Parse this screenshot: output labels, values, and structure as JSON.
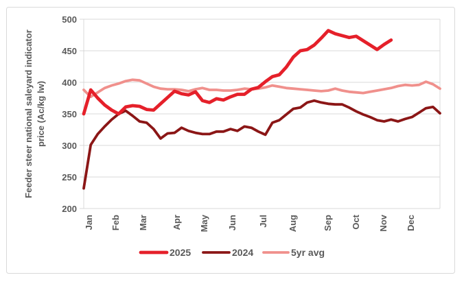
{
  "chart_data": {
    "type": "line",
    "title": "",
    "ylabel_line1": "Feeder steer national saleyard indicator",
    "ylabel_line2": "price (Ac/kg lw)",
    "ylim": [
      200,
      500
    ],
    "y_ticks": [
      "500",
      "450",
      "400",
      "350",
      "300",
      "250",
      "200"
    ],
    "x_labels": [
      "Jan",
      "Feb",
      "Mar",
      "Apr",
      "May",
      "Jun",
      "Jul",
      "Aug",
      "Sep",
      "Oct",
      "Nov",
      "Dec"
    ],
    "x_resolution": "weekly",
    "grid": "horizontal",
    "legend_position": "bottom",
    "series": [
      {
        "name": "2025",
        "color": "#e5202a",
        "stroke_width": 4.8,
        "values": [
          350,
          388,
          375,
          364,
          356,
          350,
          361,
          363,
          362,
          357,
          356,
          366,
          376,
          386,
          382,
          380,
          385,
          371,
          368,
          374,
          372,
          377,
          381,
          381,
          389,
          392,
          401,
          409,
          412,
          424,
          440,
          450,
          452,
          459,
          470,
          482,
          477,
          474,
          471,
          473,
          466,
          459,
          452,
          460,
          467
        ]
      },
      {
        "name": "2024",
        "color": "#8b1616",
        "stroke_width": 3.8,
        "values": [
          232,
          301,
          318,
          330,
          341,
          350,
          355,
          347,
          338,
          336,
          326,
          311,
          319,
          320,
          328,
          323,
          320,
          318,
          318,
          322,
          322,
          326,
          323,
          330,
          328,
          322,
          317,
          336,
          340,
          349,
          358,
          360,
          368,
          371,
          368,
          366,
          365,
          365,
          360,
          354,
          349,
          345,
          340,
          338,
          341,
          338,
          342,
          345,
          352,
          359,
          361,
          351
        ]
      },
      {
        "name": "5yr avg",
        "color": "#f0908c",
        "stroke_width": 3.8,
        "values": [
          388,
          377,
          384,
          391,
          395,
          398,
          402,
          404,
          403,
          398,
          393,
          390,
          389,
          389,
          388,
          386,
          389,
          391,
          388,
          388,
          387,
          387,
          388,
          390,
          389,
          390,
          392,
          395,
          393,
          391,
          390,
          389,
          388,
          387,
          386,
          387,
          390,
          387,
          385,
          384,
          383,
          385,
          387,
          389,
          391,
          394,
          396,
          395,
          396,
          401,
          397,
          390
        ]
      }
    ]
  },
  "colors": {
    "text": "#595959",
    "grid": "#d9d9d9",
    "border": "#d9d9d9",
    "background": "#ffffff"
  }
}
